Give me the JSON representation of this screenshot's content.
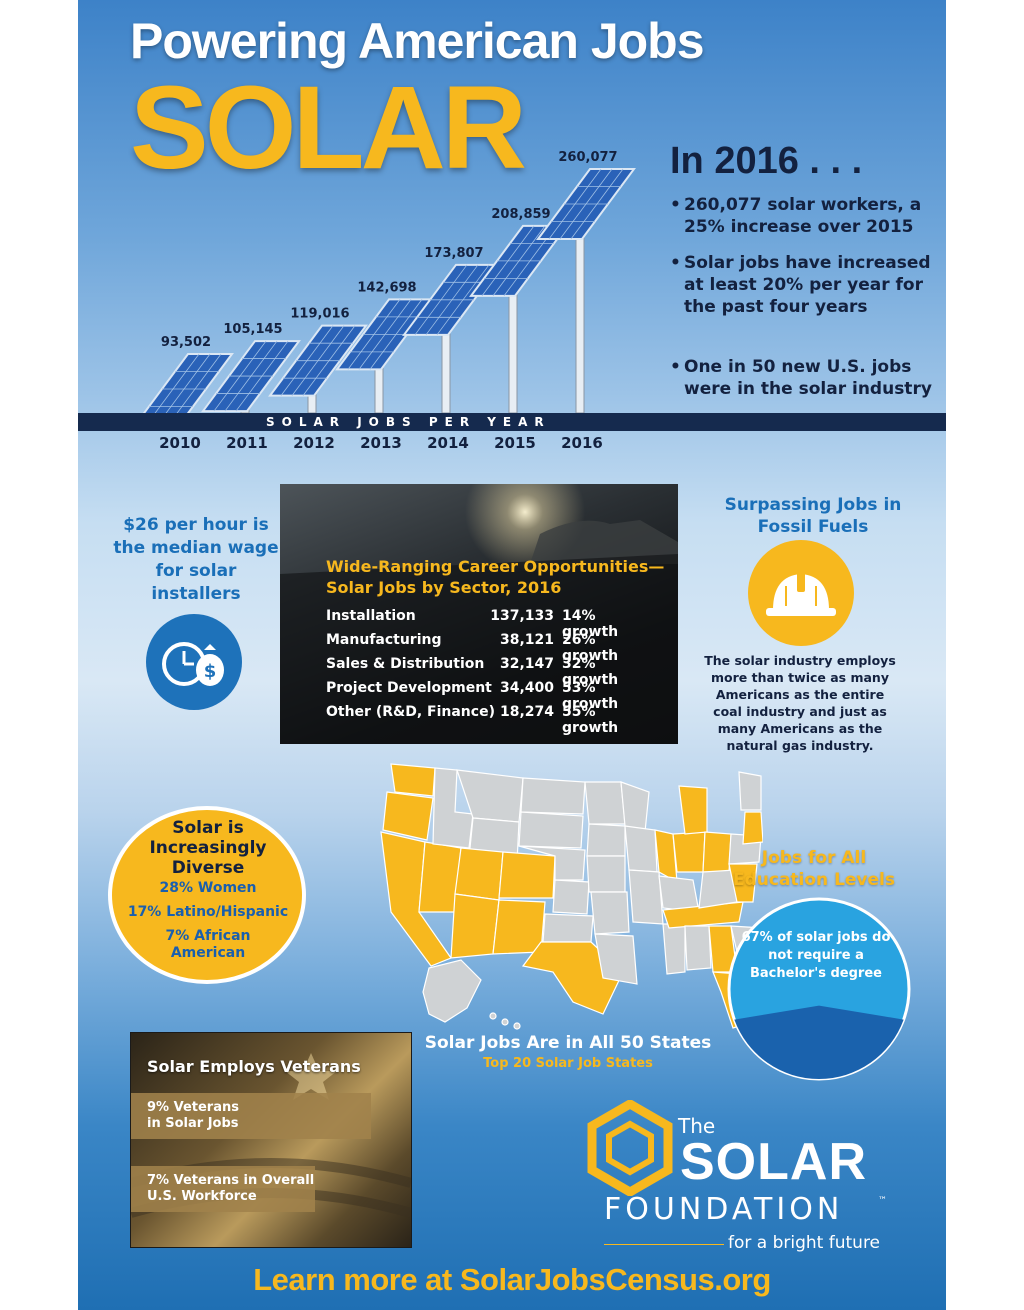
{
  "header": {
    "title": "Powering American Jobs",
    "subject": "SOLAR"
  },
  "jobs_chart": {
    "caption": "SOLAR JOBS PER YEAR",
    "years": [
      "2010",
      "2011",
      "2012",
      "2013",
      "2014",
      "2015",
      "2016"
    ],
    "values": [
      93502,
      105145,
      119016,
      142698,
      173807,
      208859,
      260077
    ],
    "value_labels": [
      "93,502",
      "105,145",
      "119,016",
      "142,698",
      "173,807",
      "208,859",
      "260,077"
    ]
  },
  "highlights": {
    "heading": "In 2016 . . .",
    "bullets": [
      "260,077 solar workers, a 25% increase over 2015",
      "Solar jobs have increased at least 20% per year for the past four years",
      "One in 50 new U.S. jobs were in the solar industry"
    ]
  },
  "wage": {
    "text": "$26 per hour is the median wage for solar installers",
    "icon": "clock-money-icon"
  },
  "sectors": {
    "title": "Wide-Ranging Career Opportunities— Solar Jobs by Sector, 2016",
    "rows": [
      {
        "sector": "Installation",
        "jobs": "137,133",
        "growth": "14% growth"
      },
      {
        "sector": "Manufacturing",
        "jobs": "38,121",
        "growth": "26% growth"
      },
      {
        "sector": "Sales & Distribution",
        "jobs": "32,147",
        "growth": "32% growth"
      },
      {
        "sector": "Project Development",
        "jobs": "34,400",
        "growth": "53% growth"
      },
      {
        "sector": "Other (R&D, Finance)",
        "jobs": "18,274",
        "growth": "55% growth"
      }
    ]
  },
  "fossil": {
    "title": "Surpassing Jobs in Fossil Fuels",
    "icon": "hard-hat-icon",
    "text": "The solar industry employs more than twice as many Americans as the entire coal industry and just as many Americans as the natural gas industry."
  },
  "diversity": {
    "title": "Solar is Increasingly Diverse",
    "stats": [
      "28% Women",
      "17% Latino/Hispanic",
      "7% African American"
    ]
  },
  "map": {
    "title": "Solar Jobs Are in All 50 States",
    "subtitle": "Top 20 Solar Job States",
    "colors": {
      "top_state": "#f7b81e",
      "other_state": "#cfd2d4"
    }
  },
  "education": {
    "title": "Jobs for All Education Levels",
    "text": "67% of solar jobs do not require a Bachelor's degree",
    "share": 0.67
  },
  "veterans": {
    "title": "Solar Employs Veterans",
    "stats": [
      "9% Veterans in Solar Jobs",
      "7% Veterans in Overall U.S. Workforce"
    ]
  },
  "logo": {
    "the": "The",
    "name": "SOLAR",
    "foundation": "FOUNDATION",
    "tm": "™",
    "tagline": "for a bright future"
  },
  "cta": "Learn more at SolarJobsCensus.org",
  "colors": {
    "accent_yellow": "#f7b81e",
    "navy": "#13213f",
    "blue": "#1a6fb8"
  }
}
